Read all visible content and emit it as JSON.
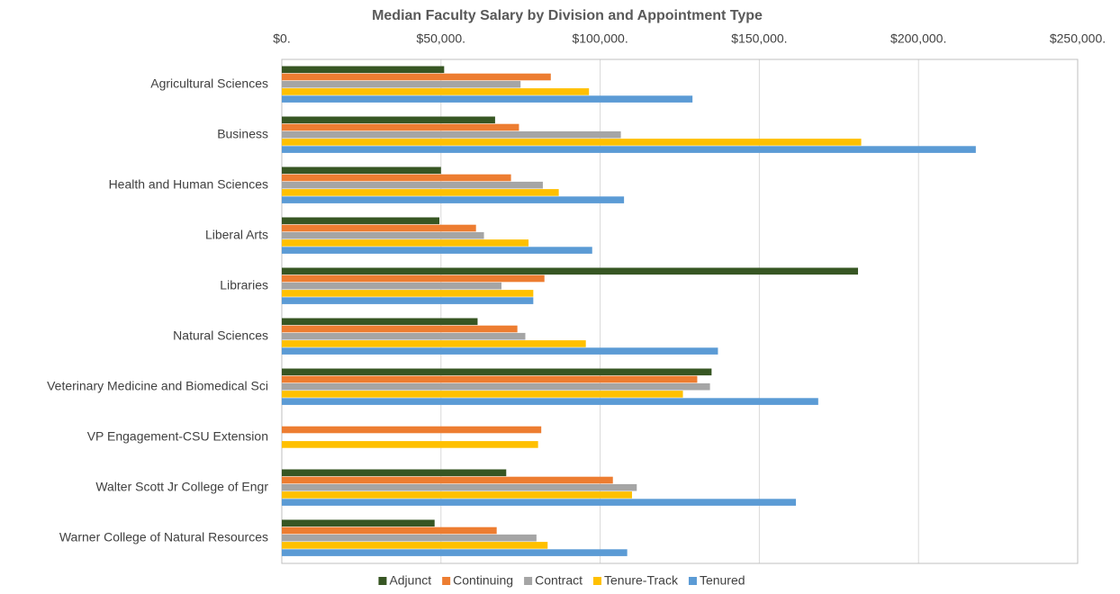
{
  "chart_data": {
    "type": "hbar",
    "title": "Median Faculty Salary by Division and Appointment Type",
    "categories": [
      "Agricultural Sciences",
      "Business",
      "Health and Human Sciences",
      "Liberal Arts",
      "Libraries",
      "Natural Sciences",
      "Veterinary Medicine and Biomedical Sci",
      "VP Engagement-CSU Extension",
      "Walter Scott Jr College of Engr",
      "Warner College of Natural Resources"
    ],
    "series": [
      {
        "name": "Adjunct",
        "color": "#375623",
        "values": [
          51000,
          67000,
          50000,
          49500,
          181000,
          61500,
          135000,
          null,
          70500,
          48000
        ]
      },
      {
        "name": "Continuing",
        "color": "#ed7d31",
        "values": [
          84500,
          74500,
          72000,
          61000,
          82500,
          74000,
          130500,
          81500,
          104000,
          67500
        ]
      },
      {
        "name": "Contract",
        "color": "#a5a5a5",
        "values": [
          75000,
          106500,
          82000,
          63500,
          69000,
          76500,
          134500,
          null,
          111500,
          80000
        ]
      },
      {
        "name": "Tenure-Track",
        "color": "#ffc000",
        "values": [
          96500,
          182000,
          87000,
          77500,
          79000,
          95500,
          126000,
          80500,
          110000,
          83500
        ]
      },
      {
        "name": "Tenured",
        "color": "#5b9bd5",
        "values": [
          129000,
          218000,
          107500,
          97500,
          79000,
          137000,
          168500,
          null,
          161500,
          108500
        ]
      }
    ],
    "xlim": [
      0,
      250000
    ],
    "xticks": [
      {
        "value": 0,
        "label": "$0."
      },
      {
        "value": 50000,
        "label": "$50,000."
      },
      {
        "value": 100000,
        "label": "$100,000."
      },
      {
        "value": 150000,
        "label": "$150,000."
      },
      {
        "value": 200000,
        "label": "$200,000."
      },
      {
        "value": 250000,
        "label": "$250,000."
      }
    ],
    "grid": true,
    "legend": "bottom"
  }
}
